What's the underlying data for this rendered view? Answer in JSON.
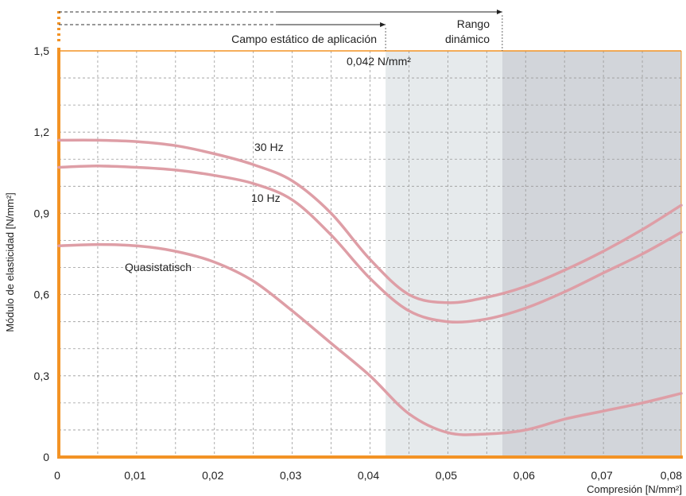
{
  "chart_data": {
    "type": "line",
    "title": "",
    "xlabel": "Compresión [N/mm²]",
    "ylabel": "Módulo de elasticidad [N/mm²]",
    "xlim": [
      0,
      0.08
    ],
    "ylim": [
      0,
      1.5
    ],
    "x_ticks": [
      "0",
      "0,01",
      "0,02",
      "0,03",
      "0,04",
      "0,05",
      "0,06",
      "0,07",
      "0,08"
    ],
    "y_ticks": [
      "0",
      "0,3",
      "0,6",
      "0,9",
      "1,2",
      "1,5"
    ],
    "grid": true,
    "regions": [
      {
        "label": "Campo estático de aplicación",
        "from": 0,
        "to": 0.042
      },
      {
        "label_lines": [
          "Rango",
          "dinámico"
        ],
        "from": 0.042,
        "to": 0.057,
        "shade": "#e6eaec"
      },
      {
        "from": 0.057,
        "to": 0.08,
        "shade": "#d2d5da"
      }
    ],
    "threshold_label": "0,042 N/mm²",
    "series": [
      {
        "name": "30 Hz",
        "x": [
          0,
          0.005,
          0.01,
          0.015,
          0.02,
          0.025,
          0.03,
          0.035,
          0.04,
          0.045,
          0.05,
          0.055,
          0.06,
          0.065,
          0.07,
          0.075,
          0.08
        ],
        "y": [
          1.17,
          1.17,
          1.165,
          1.15,
          1.12,
          1.08,
          1.02,
          0.9,
          0.73,
          0.6,
          0.57,
          0.59,
          0.63,
          0.69,
          0.76,
          0.84,
          0.93
        ]
      },
      {
        "name": "10 Hz",
        "x": [
          0,
          0.005,
          0.01,
          0.015,
          0.02,
          0.025,
          0.03,
          0.035,
          0.04,
          0.045,
          0.05,
          0.055,
          0.06,
          0.065,
          0.07,
          0.075,
          0.08
        ],
        "y": [
          1.07,
          1.075,
          1.07,
          1.06,
          1.04,
          1.01,
          0.95,
          0.82,
          0.66,
          0.54,
          0.5,
          0.51,
          0.55,
          0.61,
          0.68,
          0.75,
          0.83
        ]
      },
      {
        "name": "Quasistatisch",
        "x": [
          0,
          0.005,
          0.01,
          0.015,
          0.02,
          0.025,
          0.03,
          0.035,
          0.04,
          0.045,
          0.05,
          0.055,
          0.06,
          0.065,
          0.07,
          0.075,
          0.08
        ],
        "y": [
          0.78,
          0.785,
          0.78,
          0.76,
          0.72,
          0.65,
          0.54,
          0.42,
          0.3,
          0.16,
          0.09,
          0.085,
          0.1,
          0.14,
          0.17,
          0.2,
          0.235
        ]
      }
    ],
    "colors": {
      "axis": "#f39325",
      "curve": "#de9ea6",
      "grid": "#9a9a9a",
      "band1": "#e6eaec",
      "band2": "#d2d5da"
    }
  }
}
